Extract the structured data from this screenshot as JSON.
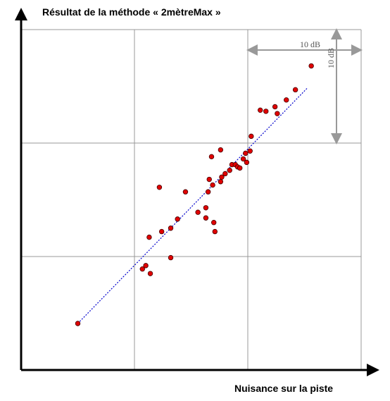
{
  "chart_data": {
    "type": "scatter",
    "title": "Résultat de la méthode « 2mètreMax »",
    "x_label": "Nuisance sur la piste",
    "annotations": [
      "10 dB",
      "10 dB"
    ],
    "color": "#e00000",
    "grid": true,
    "xlim": [
      0,
      30
    ],
    "ylim": [
      0,
      30
    ],
    "xticks": [
      0,
      10,
      20,
      30
    ],
    "yticks": [
      0,
      10,
      20,
      30
    ],
    "x": [
      5.0,
      10.7,
      11.0,
      11.4,
      13.2,
      11.3,
      12.4,
      13.2,
      13.8,
      12.2,
      14.5,
      15.6,
      16.3,
      16.3,
      17.0,
      17.1,
      16.5,
      16.6,
      16.9,
      17.6,
      17.7,
      16.8,
      17.6,
      18.0,
      18.4,
      18.6,
      18.9,
      19.1,
      19.3,
      19.6,
      19.8,
      19.9,
      20.2,
      20.3,
      21.1,
      21.6,
      22.4,
      22.6,
      23.4,
      24.2,
      25.6
    ],
    "values": [
      4.1,
      8.9,
      9.2,
      8.5,
      9.9,
      11.7,
      12.2,
      12.5,
      13.3,
      16.1,
      15.7,
      13.9,
      14.3,
      13.4,
      13.0,
      12.2,
      15.7,
      16.8,
      16.3,
      16.6,
      17.0,
      18.8,
      19.4,
      17.3,
      17.6,
      18.1,
      18.1,
      17.9,
      17.8,
      18.6,
      19.1,
      18.3,
      19.3,
      20.6,
      22.9,
      22.8,
      23.2,
      22.6,
      23.8,
      24.7,
      26.8
    ],
    "trendline": {
      "color": "#0000cc",
      "x": [
        5.0,
        25.3
      ],
      "values": [
        4.1,
        24.9
      ]
    }
  }
}
